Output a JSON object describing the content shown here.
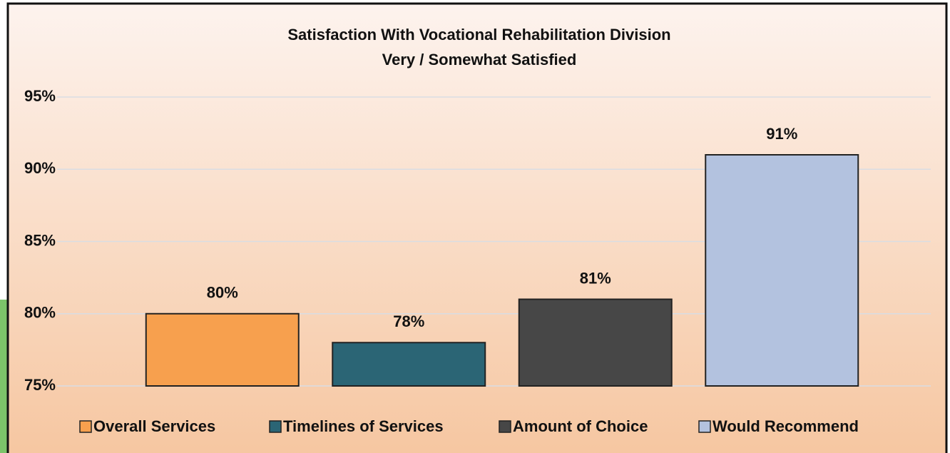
{
  "chart_data": {
    "type": "bar",
    "title": "Satisfaction With Vocational Rehabilitation Division",
    "subtitle": "Very / Somewhat Satisfied",
    "series": [
      {
        "name": "Overall Services",
        "color": "#f7a04e",
        "values": [
          80
        ],
        "value_labels": [
          "80%"
        ]
      },
      {
        "name": "Timelines of Services",
        "color": "#2b6575",
        "values": [
          78
        ],
        "value_labels": [
          "78%"
        ]
      },
      {
        "name": "Amount of Choice",
        "color": "#474747",
        "values": [
          81
        ],
        "value_labels": [
          "81%"
        ]
      },
      {
        "name": "Would Recommend",
        "color": "#b3c2df",
        "values": [
          91
        ],
        "value_labels": [
          "91%"
        ]
      }
    ],
    "ylim": [
      75,
      95
    ],
    "yticks": [
      {
        "value": 75,
        "label": "75%"
      },
      {
        "value": 80,
        "label": "80%"
      },
      {
        "value": 85,
        "label": "85%"
      },
      {
        "value": 90,
        "label": "90%"
      },
      {
        "value": 95,
        "label": "95%"
      }
    ],
    "grid": true,
    "legend": "bottom"
  }
}
